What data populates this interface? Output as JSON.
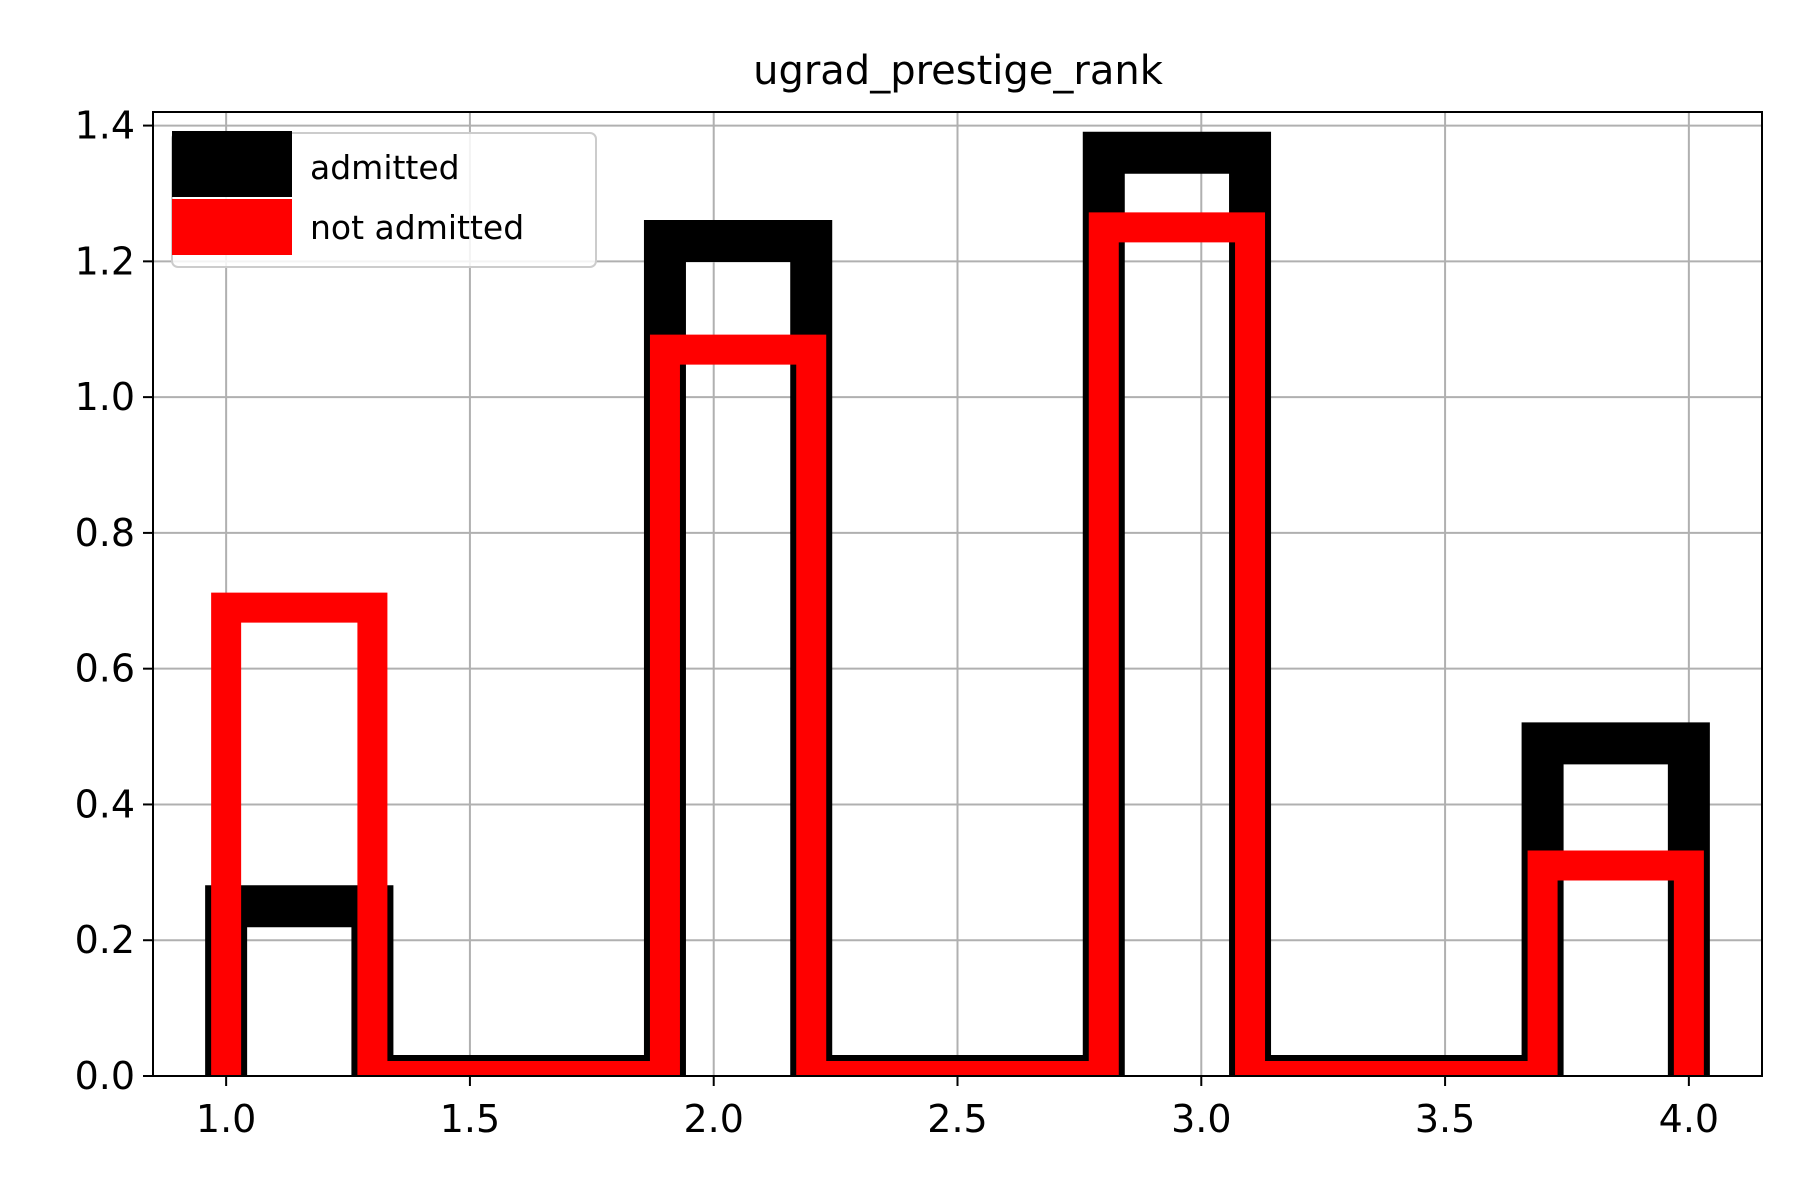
{
  "chart_data": {
    "type": "histogram-step",
    "title": "ugrad_prestige_rank",
    "xlabel": "",
    "ylabel": "",
    "xlim": [
      0.85,
      4.15
    ],
    "ylim": [
      0.0,
      1.42
    ],
    "grid": true,
    "x_ticks": [
      1.0,
      1.5,
      2.0,
      2.5,
      3.0,
      3.5,
      4.0
    ],
    "x_tick_labels": [
      "1.0",
      "1.5",
      "2.0",
      "2.5",
      "3.0",
      "3.5",
      "4.0"
    ],
    "y_ticks": [
      0.0,
      0.2,
      0.4,
      0.6,
      0.8,
      1.0,
      1.2,
      1.4
    ],
    "y_tick_labels": [
      "0.0",
      "0.2",
      "0.4",
      "0.6",
      "0.8",
      "1.0",
      "1.2",
      "1.4"
    ],
    "bin_edges": [
      1.0,
      1.3,
      1.6,
      1.9,
      2.2,
      2.5,
      2.8,
      3.1,
      3.4,
      3.7,
      4.0
    ],
    "legend_position": "upper-left",
    "series": [
      {
        "name": "admitted",
        "color": "#000000",
        "values": [
          0.25,
          0.0,
          0.0,
          1.23,
          0.0,
          0.0,
          1.36,
          0.0,
          0.0,
          0.49
        ]
      },
      {
        "name": "not admitted",
        "color": "#ff0000",
        "values": [
          0.69,
          0.0,
          0.0,
          1.07,
          0.0,
          0.0,
          1.25,
          0.0,
          0.0,
          0.31
        ]
      }
    ]
  }
}
